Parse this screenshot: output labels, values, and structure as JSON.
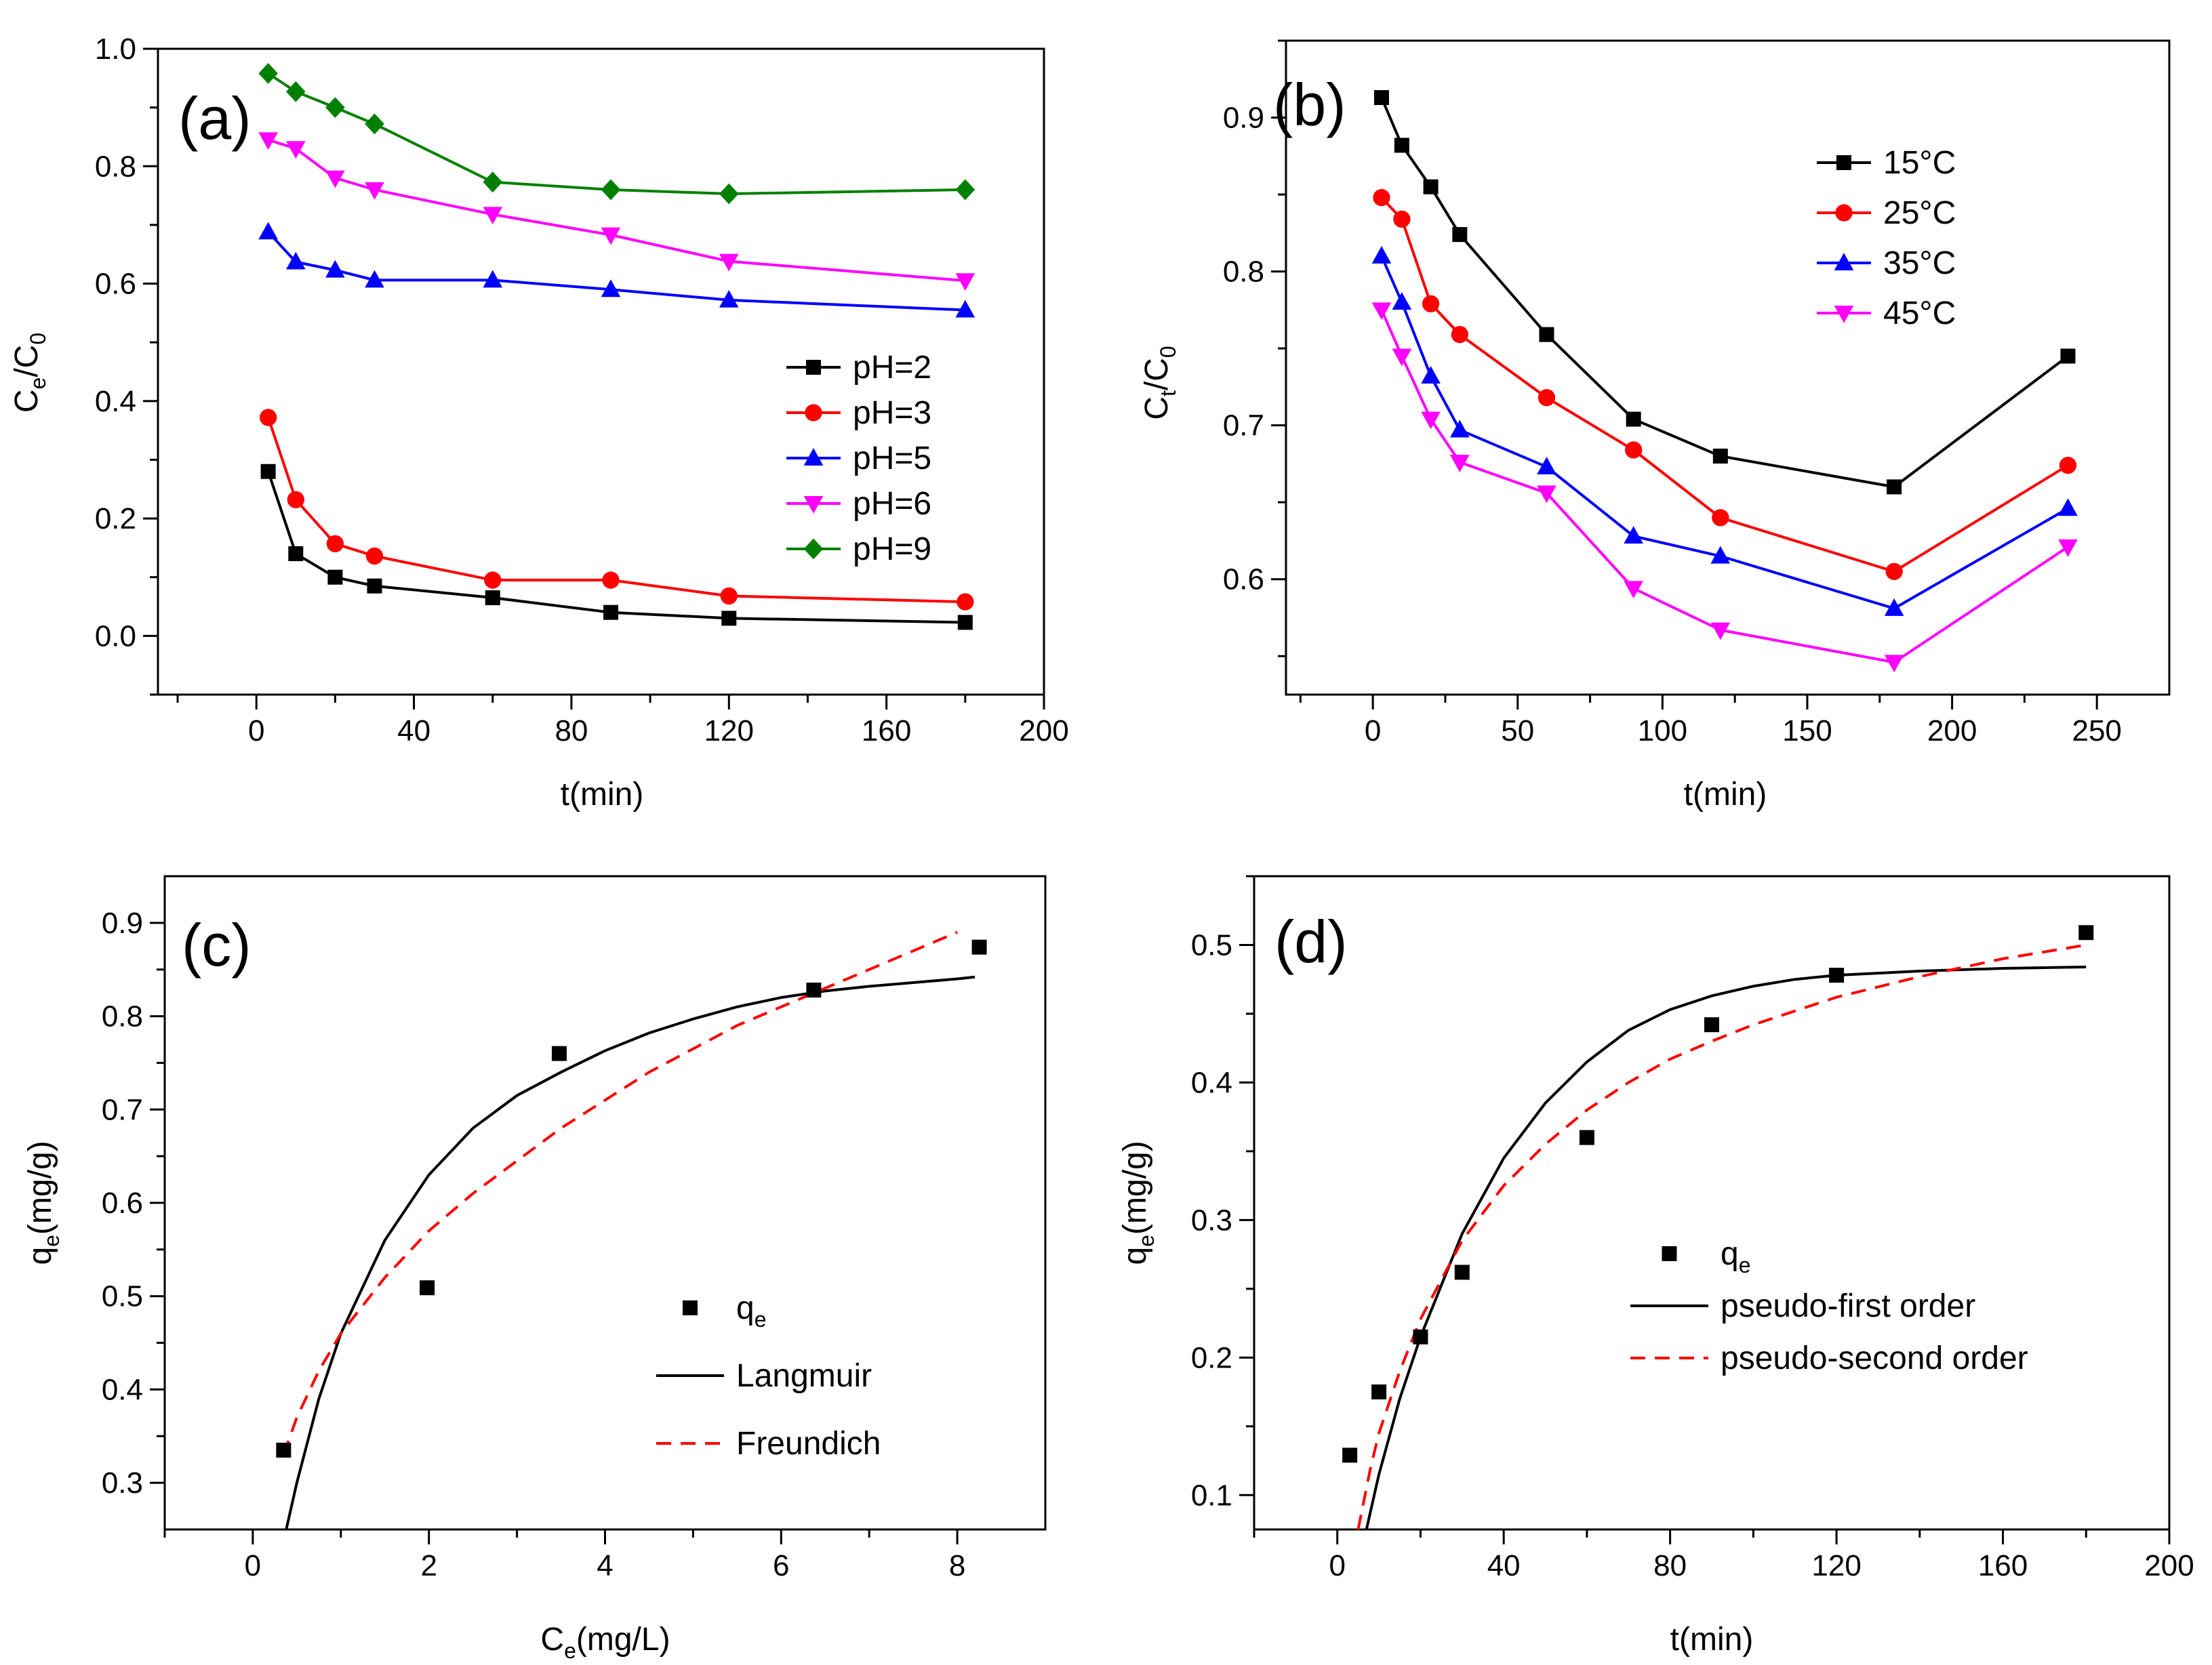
{
  "chart_data": [
    {
      "id": "a",
      "type": "line",
      "panel_label": "(a)",
      "xlabel": "t(min)",
      "ylabel": {
        "main": "C",
        "sub1": "e",
        "sep": "/C",
        "sub2": "0"
      },
      "xlim": [
        -25,
        200
      ],
      "ylim": [
        -0.1,
        1.0
      ],
      "xticks": [
        0,
        40,
        80,
        120,
        160,
        200
      ],
      "yticks": [
        0.0,
        0.2,
        0.4,
        0.6,
        0.8,
        1.0
      ],
      "xtick_labels": [
        "0",
        "40",
        "80",
        "120",
        "160",
        "200"
      ],
      "ytick_labels": [
        "0.0",
        "0.2",
        "0.4",
        "0.6",
        "0.8",
        "1.0"
      ],
      "legend_position": "middle-right",
      "x": [
        3,
        10,
        20,
        30,
        60,
        90,
        120,
        180
      ],
      "series": [
        {
          "name": "pH=2",
          "color": "#000000",
          "marker": "square",
          "values": [
            0.28,
            0.14,
            0.1,
            0.085,
            0.065,
            0.04,
            0.03,
            0.023
          ]
        },
        {
          "name": "pH=3",
          "color": "#ff0000",
          "marker": "circle",
          "values": [
            0.372,
            0.232,
            0.157,
            0.136,
            0.095,
            0.095,
            0.068,
            0.058
          ]
        },
        {
          "name": "pH=5",
          "color": "#0000ff",
          "marker": "triangle-up",
          "values": [
            0.688,
            0.637,
            0.623,
            0.606,
            0.606,
            0.59,
            0.572,
            0.555
          ]
        },
        {
          "name": "pH=6",
          "color": "#ff00ff",
          "marker": "triangle-down",
          "values": [
            0.845,
            0.83,
            0.78,
            0.76,
            0.718,
            0.683,
            0.638,
            0.605
          ]
        },
        {
          "name": "pH=9",
          "color": "#008000",
          "marker": "diamond",
          "values": [
            0.958,
            0.927,
            0.9,
            0.872,
            0.773,
            0.76,
            0.753,
            0.76
          ]
        }
      ]
    },
    {
      "id": "b",
      "type": "line",
      "panel_label": "(b)",
      "xlabel": "t(min)",
      "ylabel": {
        "main": "C",
        "sub1": "t",
        "sep": "/C",
        "sub2": "0"
      },
      "xlim": [
        -30,
        275
      ],
      "ylim": [
        0.525,
        0.95
      ],
      "xticks": [
        0,
        50,
        100,
        150,
        200,
        250
      ],
      "yticks": [
        0.6,
        0.7,
        0.8,
        0.9
      ],
      "xtick_labels": [
        "0",
        "50",
        "100",
        "150",
        "200",
        "250"
      ],
      "ytick_labels": [
        "0.6",
        "0.7",
        "0.8",
        "0.9"
      ],
      "legend_position": "top-center",
      "x": [
        3,
        10,
        20,
        30,
        60,
        90,
        120,
        180,
        240
      ],
      "series": [
        {
          "name": "15°C",
          "color": "#000000",
          "marker": "square",
          "values": [
            0.913,
            0.882,
            0.855,
            0.824,
            0.759,
            0.704,
            0.68,
            0.66,
            0.745
          ]
        },
        {
          "name": "25°C",
          "color": "#ff0000",
          "marker": "circle",
          "values": [
            0.848,
            0.834,
            0.779,
            0.759,
            0.718,
            0.684,
            0.64,
            0.605,
            0.674
          ]
        },
        {
          "name": "35°C",
          "color": "#0000ff",
          "marker": "triangle-up",
          "values": [
            0.81,
            0.78,
            0.732,
            0.697,
            0.673,
            0.628,
            0.615,
            0.581,
            0.646
          ]
        },
        {
          "name": "45°C",
          "color": "#ff00ff",
          "marker": "triangle-down",
          "values": [
            0.775,
            0.745,
            0.704,
            0.676,
            0.656,
            0.594,
            0.567,
            0.546,
            0.621
          ]
        }
      ]
    },
    {
      "id": "c",
      "type": "scatter",
      "panel_label": "(c)",
      "xlabel": {
        "main": "C",
        "sub": "e",
        "rest": "(mg/L)"
      },
      "ylabel": {
        "main": "q",
        "sub": "e",
        "rest": "(mg/g)"
      },
      "xlim": [
        -1,
        9
      ],
      "ylim": [
        0.25,
        0.95
      ],
      "xticks": [
        0,
        2,
        4,
        6,
        8
      ],
      "yticks": [
        0.3,
        0.4,
        0.5,
        0.6,
        0.7,
        0.8,
        0.9
      ],
      "xtick_labels": [
        "0",
        "2",
        "4",
        "6",
        "8"
      ],
      "ytick_labels": [
        "0.3",
        "0.4",
        "0.5",
        "0.6",
        "0.7",
        "0.8",
        "0.9"
      ],
      "legend_position": "bottom-right",
      "points": {
        "name": "q",
        "sub": "e",
        "color": "#000000",
        "x": [
          0.35,
          1.98,
          3.48,
          6.37,
          8.25
        ],
        "y": [
          0.335,
          0.509,
          0.76,
          0.828,
          0.874
        ]
      },
      "fits": [
        {
          "name": "Langmuir",
          "color": "#000000",
          "dash": "solid",
          "x": [
            0.38,
            0.5,
            0.75,
            1.0,
            1.5,
            2.0,
            2.5,
            3.0,
            3.5,
            4.0,
            4.5,
            5.0,
            5.5,
            6.0,
            6.5,
            7.0,
            7.5,
            8.0,
            8.2
          ],
          "y": [
            0.25,
            0.3,
            0.39,
            0.46,
            0.56,
            0.63,
            0.68,
            0.715,
            0.74,
            0.763,
            0.782,
            0.797,
            0.81,
            0.82,
            0.827,
            0.832,
            0.836,
            0.84,
            0.842
          ]
        },
        {
          "name": "Freundich",
          "color": "#ff0000",
          "dash": "dashed",
          "x": [
            0.35,
            0.5,
            0.75,
            1.0,
            1.5,
            2.0,
            2.5,
            3.0,
            3.5,
            4.0,
            4.5,
            5.0,
            5.5,
            6.0,
            6.5,
            7.0,
            7.5,
            8.0
          ],
          "y": [
            0.33,
            0.37,
            0.42,
            0.46,
            0.52,
            0.57,
            0.61,
            0.645,
            0.68,
            0.71,
            0.74,
            0.765,
            0.79,
            0.81,
            0.83,
            0.85,
            0.87,
            0.89
          ]
        }
      ]
    },
    {
      "id": "d",
      "type": "scatter",
      "panel_label": "(d)",
      "xlabel": "t(min)",
      "ylabel": {
        "main": "q",
        "sub": "e",
        "rest": "(mg/g)"
      },
      "xlim": [
        -20,
        200
      ],
      "ylim": [
        0.075,
        0.55
      ],
      "xticks": [
        0,
        40,
        80,
        120,
        160,
        200
      ],
      "yticks": [
        0.1,
        0.2,
        0.3,
        0.4,
        0.5
      ],
      "xtick_labels": [
        "0",
        "40",
        "80",
        "120",
        "160",
        "200"
      ],
      "ytick_labels": [
        "0.1",
        "0.2",
        "0.3",
        "0.4",
        "0.5"
      ],
      "legend_position": "middle-right",
      "points": {
        "name": "q",
        "sub": "e",
        "color": "#000000",
        "x": [
          3,
          10,
          20,
          30,
          60,
          90,
          120,
          180
        ],
        "y": [
          0.129,
          0.175,
          0.215,
          0.262,
          0.36,
          0.442,
          0.478,
          0.509
        ]
      },
      "fits": [
        {
          "name": "pseudo-first order",
          "color": "#000000",
          "dash": "solid",
          "x": [
            7,
            10,
            15,
            20,
            30,
            40,
            50,
            60,
            70,
            80,
            90,
            100,
            110,
            120,
            140,
            160,
            180
          ],
          "y": [
            0.075,
            0.115,
            0.17,
            0.215,
            0.29,
            0.345,
            0.385,
            0.415,
            0.438,
            0.453,
            0.463,
            0.47,
            0.475,
            0.478,
            0.481,
            0.483,
            0.484
          ]
        },
        {
          "name": "pseudo-second order",
          "color": "#ff0000",
          "dash": "dashed",
          "x": [
            5,
            8,
            10,
            15,
            20,
            30,
            40,
            50,
            60,
            70,
            80,
            90,
            100,
            120,
            140,
            160,
            180
          ],
          "y": [
            0.075,
            0.12,
            0.145,
            0.19,
            0.228,
            0.285,
            0.325,
            0.355,
            0.38,
            0.4,
            0.417,
            0.43,
            0.442,
            0.462,
            0.477,
            0.49,
            0.5
          ]
        }
      ]
    }
  ]
}
